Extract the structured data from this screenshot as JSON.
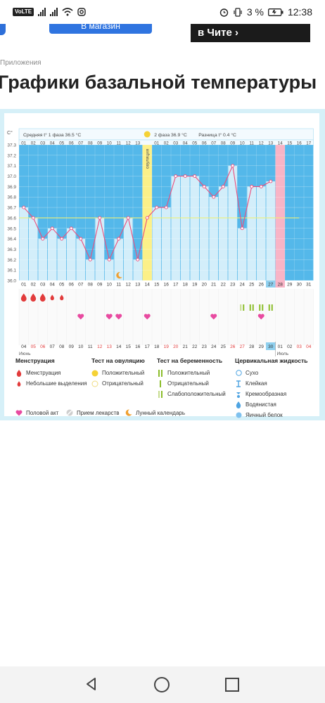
{
  "status_bar": {
    "network_badge": "VoLTE",
    "battery": "3 %",
    "time": "12:38",
    "icons": [
      "signal-icon",
      "signal-icon",
      "wifi-icon",
      "instagram-icon",
      "alarm-icon",
      "vibrate-icon",
      "battery-icon"
    ]
  },
  "ad": {
    "button_label": "В магазин",
    "dark_text": "в Чите ›"
  },
  "breadcrumb": "Приложения",
  "title": "Графики базальной температуры",
  "chart_data": {
    "type": "line",
    "y_axis_label": "C°",
    "y_ticks": [
      "37.3",
      "37.2",
      "37.1",
      "37.0",
      "36.9",
      "36.8",
      "36.7",
      "36.6",
      "36.5",
      "36.4",
      "36.3",
      "36.2",
      "36.1",
      "36.0"
    ],
    "ylim": [
      36.0,
      37.3
    ],
    "phase1_caption": "Средняя t° 1 фаза 36.5 °С",
    "phase2_caption": "2 фаза 36.9 °С",
    "diff_caption": "Разница t° 0.4 °С",
    "ovulation_label": "овуляция",
    "average_line": 36.6,
    "cycle_days": [
      "01",
      "02",
      "03",
      "04",
      "05",
      "06",
      "07",
      "08",
      "09",
      "10",
      "11",
      "12",
      "13",
      "14",
      "15",
      "16",
      "17",
      "18",
      "19",
      "20",
      "21",
      "22",
      "23",
      "24",
      "25",
      "26",
      "27",
      "28",
      "29",
      "30",
      "31"
    ],
    "phase2_days": [
      "01",
      "02",
      "03",
      "04",
      "05",
      "06",
      "07",
      "08",
      "09",
      "10",
      "11",
      "12",
      "13",
      "14",
      "15",
      "16",
      "17"
    ],
    "highlighted_day": "27",
    "ovulation_day_index": 14,
    "pink_day_index": 28,
    "temperatures": [
      36.7,
      36.6,
      36.4,
      36.5,
      36.4,
      36.5,
      36.4,
      36.2,
      36.6,
      36.2,
      36.4,
      36.6,
      36.2,
      36.6,
      36.7,
      36.7,
      37.0,
      37.0,
      37.0,
      36.9,
      36.8,
      36.9,
      37.1,
      36.5,
      36.9,
      36.9,
      36.95
    ],
    "dates": [
      {
        "d": "04",
        "red": false
      },
      {
        "d": "05",
        "red": true
      },
      {
        "d": "06",
        "red": true
      },
      {
        "d": "07",
        "red": false
      },
      {
        "d": "08",
        "red": false
      },
      {
        "d": "09",
        "red": false
      },
      {
        "d": "10",
        "red": false
      },
      {
        "d": "11",
        "red": false
      },
      {
        "d": "12",
        "red": true
      },
      {
        "d": "13",
        "red": true
      },
      {
        "d": "14",
        "red": false
      },
      {
        "d": "15",
        "red": false
      },
      {
        "d": "16",
        "red": false
      },
      {
        "d": "17",
        "red": false
      },
      {
        "d": "18",
        "red": false
      },
      {
        "d": "19",
        "red": true
      },
      {
        "d": "20",
        "red": true
      },
      {
        "d": "21",
        "red": false
      },
      {
        "d": "22",
        "red": false
      },
      {
        "d": "23",
        "red": false
      },
      {
        "d": "24",
        "red": false
      },
      {
        "d": "25",
        "red": false
      },
      {
        "d": "26",
        "red": true
      },
      {
        "d": "27",
        "red": true
      },
      {
        "d": "28",
        "red": false
      },
      {
        "d": "29",
        "red": false
      },
      {
        "d": "30",
        "red": false
      },
      {
        "d": "01",
        "red": false
      },
      {
        "d": "02",
        "red": false
      },
      {
        "d": "03",
        "red": true
      },
      {
        "d": "04",
        "red": true
      }
    ],
    "highlighted_date_index": 26,
    "month_start": "Июнь",
    "month_next": "Июль",
    "month_next_index": 27,
    "menstruation_days": [
      0,
      1,
      2,
      3,
      4
    ],
    "menstruation_small_from": 3,
    "intercourse_days": [
      6,
      9,
      10,
      13,
      20,
      25
    ],
    "pregnancy_tests": [
      23,
      24,
      25,
      26
    ],
    "moon_day": 10
  },
  "legend": {
    "menstruation": {
      "title": "Менструация",
      "items": [
        "Менструация",
        "Небольшие выделения"
      ]
    },
    "ovulation_test": {
      "title": "Тест на овуляцию",
      "items": [
        "Положительный",
        "Отрицательный"
      ]
    },
    "pregnancy_test": {
      "title": "Тест на беременность",
      "items": [
        "Положительный",
        "Отрицательный",
        "Слабоположительный"
      ]
    },
    "cervical": {
      "title": "Цервикальная жидкость",
      "items": [
        "Сухо",
        "Клейкая",
        "Кремообразная",
        "Водянистая",
        "Яичный белок"
      ]
    },
    "bottom": [
      "Половой акт",
      "Прием лекарств",
      "Лунный календарь"
    ]
  },
  "colors": {
    "grid_bg": "#54b8ea",
    "column": "#d3eefa",
    "line": "#ec4d7c",
    "ovulation": "#fcf088",
    "pink": "#f8b4c6",
    "highlight": "#8fd0ef",
    "average": "#eef07a"
  },
  "nav": {
    "icons": [
      "back-icon",
      "home-icon",
      "recent-apps-icon"
    ]
  }
}
